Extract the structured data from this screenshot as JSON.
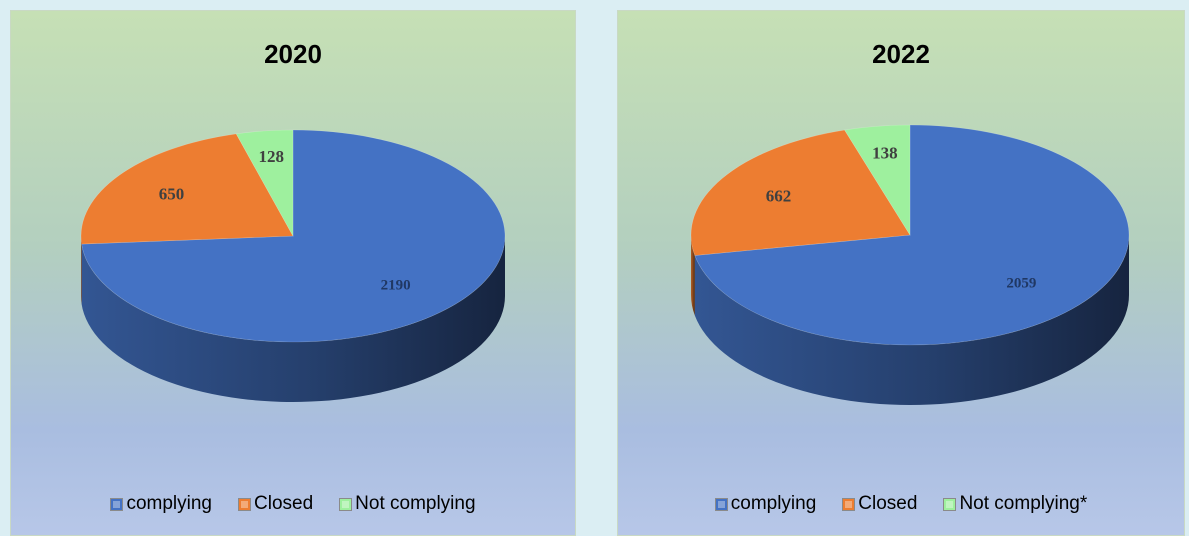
{
  "chart_data": [
    {
      "type": "pie",
      "title": "2020",
      "categories": [
        "complying",
        "Closed",
        "Not complying"
      ],
      "values": [
        2190,
        650,
        128
      ],
      "colors": [
        "#4472c4",
        "#ed7d31",
        "#9ef09e"
      ],
      "legend": "bottom"
    },
    {
      "type": "pie",
      "title": "2022",
      "categories": [
        "complying",
        "Closed",
        "Not complying*"
      ],
      "values": [
        2059,
        662,
        138
      ],
      "colors": [
        "#4472c4",
        "#ed7d31",
        "#9ef09e"
      ],
      "legend": "bottom"
    }
  ]
}
